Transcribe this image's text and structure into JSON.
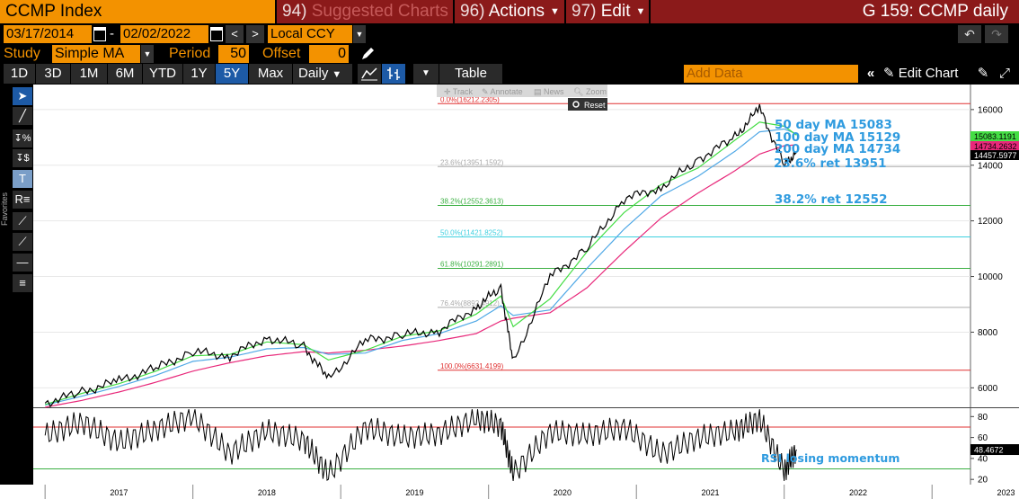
{
  "header": {
    "ticker": "CCMP Index",
    "suggested_num": "94)",
    "suggested_label": "Suggested Charts",
    "actions_num": "96)",
    "actions_label": "Actions",
    "edit_num": "97)",
    "edit_label": "Edit",
    "chart_title": "G 159: CCMP daily"
  },
  "dates": {
    "start": "03/17/2014",
    "end": "02/02/2022",
    "separator": "-",
    "currency": "Local CCY"
  },
  "study": {
    "study_label": "Study",
    "study_value": "Simple MA",
    "period_label": "Period",
    "period_value": "50",
    "offset_label": "Offset",
    "offset_value": "0"
  },
  "range_buttons": [
    "1D",
    "3D",
    "1M",
    "6M",
    "YTD",
    "1Y",
    "5Y",
    "Max"
  ],
  "active_range": "5Y",
  "frequency": "Daily",
  "table_label": "Table",
  "add_data_placeholder": "Add Data",
  "edit_chart_label": "Edit Chart",
  "favorites_label": "Favorites",
  "chart_toolbar": {
    "track": "Track",
    "annotate": "Annotate",
    "news": "News",
    "zoom": "Zoom",
    "reset": "Reset"
  },
  "icons": {
    "calendar": "calendar-icon",
    "prev": "chevron-left-icon",
    "next": "chevron-right-icon",
    "undo": "undo-icon",
    "redo": "redo-icon",
    "pencil": "pencil-icon",
    "line-chart": "line-chart-icon",
    "bar-chart": "bar-chart-icon",
    "collapse": "double-chevron-left-icon",
    "edit": "edit-icon",
    "expand": "expand-icon"
  },
  "colors": {
    "accent": "#f39200",
    "maroon": "#8b1a1a",
    "price": "#000000",
    "ma50": "#44dd44",
    "ma100": "#4fa8e6",
    "ma200": "#e8287a",
    "fib_red": "#e03030",
    "fib_gray": "#aaaaaa",
    "fib_green": "#3cb043",
    "fib_cyan": "#3fd0e0",
    "annotation": "#2f9bdf"
  },
  "annotations": {
    "ma50": "50 day MA 15083",
    "ma100": "100 day MA 15129",
    "ma200": "200 day MA 14734",
    "ret236": "23.6% ret 13951",
    "ret382": "38.2% ret 12552",
    "rsi": "RSI losing momentum"
  },
  "chart_data": [
    {
      "type": "line",
      "title": "",
      "x": [
        "2017-01",
        "2017-04",
        "2017-07",
        "2017-10",
        "2018-01",
        "2018-04",
        "2018-07",
        "2018-10",
        "2018-12",
        "2019-03",
        "2019-06",
        "2019-09",
        "2019-12",
        "2020-02",
        "2020-03",
        "2020-06",
        "2020-09",
        "2020-12",
        "2021-03",
        "2021-06",
        "2021-09",
        "2021-11",
        "2022-01",
        "2022-02"
      ],
      "x_tick_labels": [
        "2017",
        "2018",
        "2019",
        "2020",
        "2021",
        "2022",
        "2023"
      ],
      "y_tick_labels": [
        "6000",
        "8000",
        "10000",
        "12000",
        "14000",
        "16000"
      ],
      "ylim": [
        5300,
        16900
      ],
      "series": [
        {
          "name": "",
          "values": [
            5450,
            5850,
            6250,
            6700,
            7300,
            7150,
            7800,
            7500,
            6300,
            7700,
            7900,
            8050,
            8900,
            9600,
            6900,
            10000,
            11000,
            12800,
            13200,
            14200,
            15000,
            16050,
            14000,
            14457
          ]
        },
        {
          "name": "50 day MA",
          "values": [
            5400,
            5800,
            6150,
            6600,
            7150,
            7200,
            7650,
            7550,
            7000,
            7350,
            7850,
            8050,
            8650,
            9300,
            8200,
            9200,
            10900,
            12300,
            13300,
            13900,
            14900,
            15550,
            15400,
            15083
          ]
        },
        {
          "name": "100 day MA",
          "values": [
            5380,
            5700,
            6050,
            6450,
            6950,
            7100,
            7400,
            7450,
            7200,
            7250,
            7700,
            7950,
            8400,
            8950,
            8600,
            8800,
            10300,
            11700,
            12900,
            13600,
            14500,
            15200,
            15300,
            15129
          ]
        },
        {
          "name": "200 day MA",
          "values": [
            5300,
            5550,
            5850,
            6200,
            6600,
            6900,
            7150,
            7300,
            7250,
            7350,
            7500,
            7700,
            7950,
            8400,
            8500,
            8700,
            9600,
            10900,
            12100,
            13000,
            13800,
            14400,
            14700,
            14734
          ]
        }
      ],
      "fib_levels": [
        {
          "label": "0.0%(16212.2305)",
          "value": 16212.2305
        },
        {
          "label": "23.6%(13951.1592)",
          "value": 13951.1592
        },
        {
          "label": "38.2%(12552.3613)",
          "value": 12552.3613
        },
        {
          "label": "50.0%(11421.8252)",
          "value": 11421.8252
        },
        {
          "label": "61.8%(10291.2891)",
          "value": 10291.2891
        },
        {
          "label": "76.4%(8892.4912)",
          "value": 8892.4912
        },
        {
          "label": "100.0%(6631.4199)",
          "value": 6631.4199
        }
      ],
      "last_values": [
        "15083.1191",
        "14734.2632",
        "14457.5977"
      ]
    },
    {
      "type": "line",
      "title": "",
      "y_tick_labels": [
        "20",
        "40",
        "60",
        "80"
      ],
      "ylim": [
        15,
        88
      ],
      "series": [
        {
          "name": "",
          "values": [
            62,
            75,
            55,
            68,
            80,
            45,
            66,
            58,
            24,
            70,
            60,
            64,
            78,
            72,
            25,
            66,
            62,
            70,
            44,
            60,
            66,
            78,
            28,
            48.4672
          ]
        }
      ],
      "reference_lines": [
        70,
        30
      ],
      "last_value": "48.4672"
    }
  ]
}
